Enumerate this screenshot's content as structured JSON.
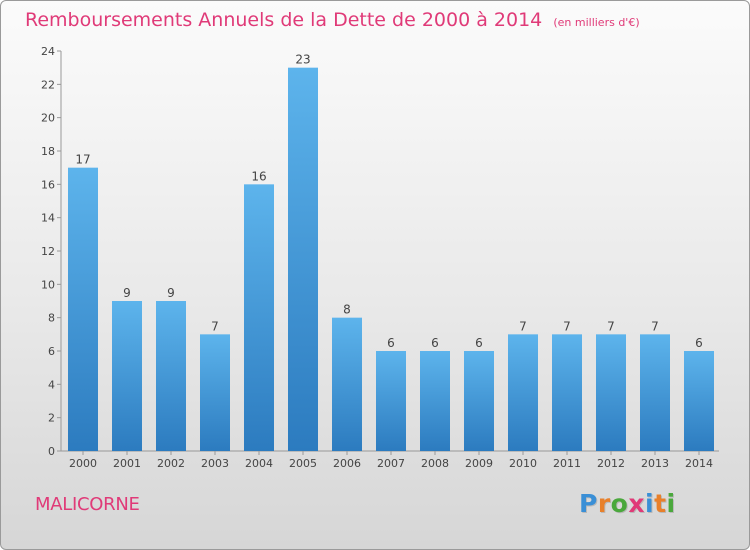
{
  "header": {
    "title": "Remboursements Annuels de la Dette de 2000 à 2014",
    "unit": "(en milliers d'€)"
  },
  "footer": {
    "place": "MALICORNE",
    "logo": "Proxiti"
  },
  "colors": {
    "accent": "#e03a78",
    "bar_light": "#5db4ec",
    "bar_dark": "#2c7bbf"
  },
  "chart_data": {
    "type": "bar",
    "title": "Remboursements Annuels de la Dette de 2000 à 2014",
    "xlabel": "",
    "ylabel": "",
    "categories": [
      "2000",
      "2001",
      "2002",
      "2003",
      "2004",
      "2005",
      "2006",
      "2007",
      "2008",
      "2009",
      "2010",
      "2011",
      "2012",
      "2013",
      "2014"
    ],
    "values": [
      17,
      9,
      9,
      7,
      16,
      23,
      8,
      6,
      6,
      6,
      7,
      7,
      7,
      7,
      6
    ],
    "ylim": [
      0,
      24
    ],
    "yticks": [
      0,
      2,
      4,
      6,
      8,
      10,
      12,
      14,
      16,
      18,
      20,
      22,
      24
    ],
    "grid": false,
    "legend": "none"
  }
}
